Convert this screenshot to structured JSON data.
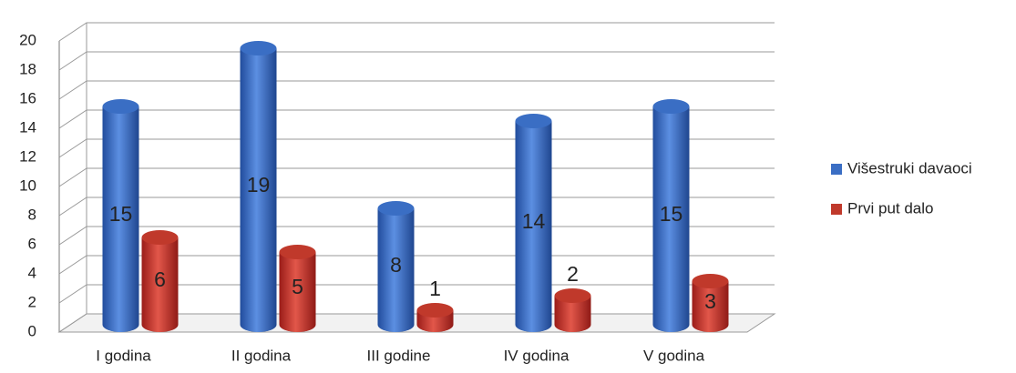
{
  "chart_data": {
    "type": "bar",
    "categories": [
      "I godina",
      "II godina",
      "III godine",
      "IV godina",
      "V godina"
    ],
    "series": [
      {
        "name": "Višestruki davaoci",
        "color": "#3a6ec4",
        "values": [
          15,
          19,
          8,
          14,
          15
        ]
      },
      {
        "name": "Prvi put dalo",
        "color": "#c0392b",
        "values": [
          6,
          5,
          1,
          2,
          3
        ]
      }
    ],
    "ylim": [
      0,
      20
    ],
    "yticks": [
      0,
      2,
      4,
      6,
      8,
      10,
      12,
      14,
      16,
      18,
      20
    ],
    "grid": true,
    "legend": "right"
  }
}
